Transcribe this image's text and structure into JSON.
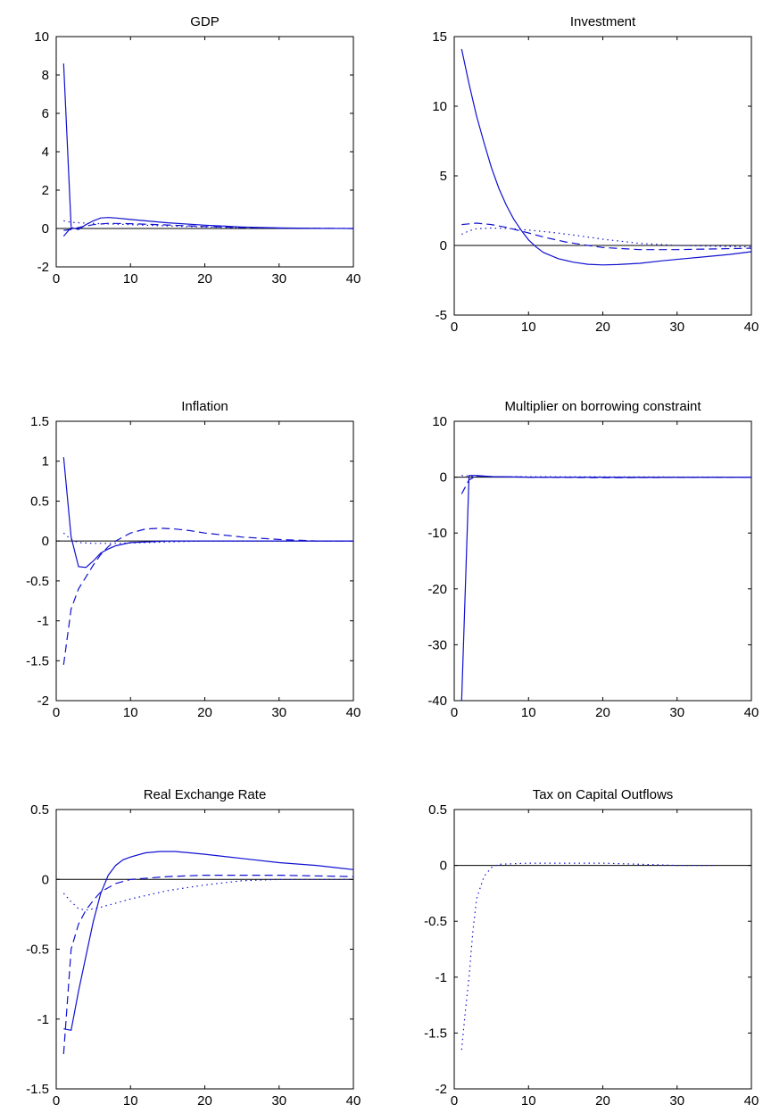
{
  "figure": {
    "colors": {
      "series": "#1010d0",
      "axis": "#000000"
    },
    "line_styles": [
      "solid",
      "dashed",
      "dotted"
    ]
  },
  "chart_data": [
    {
      "type": "line",
      "title": "GDP",
      "xlim": [
        0,
        40
      ],
      "ylim": [
        -2,
        10
      ],
      "xticks": [
        0,
        10,
        20,
        30,
        40
      ],
      "yticks": [
        -2,
        0,
        2,
        4,
        6,
        8,
        10
      ],
      "zero_line": true,
      "series": [
        {
          "style": "solid",
          "points": [
            [
              1,
              -0.4
            ],
            [
              2,
              0.05
            ],
            [
              3,
              -0.05
            ],
            [
              4,
              0.2
            ],
            [
              5,
              0.4
            ],
            [
              6,
              0.55
            ],
            [
              7,
              0.57
            ],
            [
              8,
              0.55
            ],
            [
              10,
              0.47
            ],
            [
              12,
              0.4
            ],
            [
              15,
              0.3
            ],
            [
              20,
              0.17
            ],
            [
              25,
              0.08
            ],
            [
              30,
              0.03
            ],
            [
              35,
              0.01
            ],
            [
              40,
              0.0
            ]
          ]
        },
        {
          "style": "solid",
          "points": [
            [
              1,
              8.6
            ],
            [
              2,
              0.1
            ]
          ]
        },
        {
          "style": "dashed",
          "points": [
            [
              1,
              -0.1
            ],
            [
              2,
              -0.05
            ],
            [
              3,
              0.05
            ],
            [
              5,
              0.2
            ],
            [
              7,
              0.27
            ],
            [
              10,
              0.25
            ],
            [
              15,
              0.18
            ],
            [
              20,
              0.1
            ],
            [
              25,
              0.05
            ],
            [
              30,
              0.02
            ],
            [
              40,
              0.0
            ]
          ]
        },
        {
          "style": "dotted",
          "points": [
            [
              1,
              0.4
            ],
            [
              2,
              0.32
            ],
            [
              4,
              0.28
            ],
            [
              6,
              0.25
            ],
            [
              10,
              0.2
            ],
            [
              15,
              0.13
            ],
            [
              20,
              0.08
            ],
            [
              25,
              0.04
            ],
            [
              30,
              0.02
            ],
            [
              40,
              0.0
            ]
          ]
        }
      ]
    },
    {
      "type": "line",
      "title": "Investment",
      "xlim": [
        0,
        40
      ],
      "ylim": [
        -5,
        15
      ],
      "xticks": [
        0,
        10,
        20,
        30,
        40
      ],
      "yticks": [
        -5,
        0,
        5,
        10,
        15
      ],
      "zero_line": true,
      "series": [
        {
          "style": "solid",
          "points": [
            [
              1,
              14.1
            ],
            [
              2,
              11.6
            ],
            [
              3,
              9.3
            ],
            [
              4,
              7.4
            ],
            [
              5,
              5.6
            ],
            [
              6,
              4.1
            ],
            [
              7,
              2.9
            ],
            [
              8,
              1.9
            ],
            [
              9,
              1.1
            ],
            [
              10,
              0.4
            ],
            [
              11,
              -0.1
            ],
            [
              12,
              -0.5
            ],
            [
              14,
              -0.95
            ],
            [
              16,
              -1.2
            ],
            [
              18,
              -1.35
            ],
            [
              20,
              -1.4
            ],
            [
              22,
              -1.37
            ],
            [
              25,
              -1.28
            ],
            [
              28,
              -1.1
            ],
            [
              31,
              -0.95
            ],
            [
              34,
              -0.8
            ],
            [
              37,
              -0.65
            ],
            [
              40,
              -0.45
            ]
          ]
        },
        {
          "style": "dashed",
          "points": [
            [
              1,
              1.5
            ],
            [
              2,
              1.55
            ],
            [
              3,
              1.6
            ],
            [
              5,
              1.5
            ],
            [
              7,
              1.3
            ],
            [
              10,
              0.9
            ],
            [
              12,
              0.6
            ],
            [
              15,
              0.25
            ],
            [
              18,
              0.0
            ],
            [
              20,
              -0.15
            ],
            [
              25,
              -0.3
            ],
            [
              30,
              -0.3
            ],
            [
              35,
              -0.25
            ],
            [
              40,
              -0.2
            ]
          ]
        },
        {
          "style": "dotted",
          "points": [
            [
              1,
              0.8
            ],
            [
              2,
              1.05
            ],
            [
              3,
              1.2
            ],
            [
              5,
              1.25
            ],
            [
              8,
              1.2
            ],
            [
              10,
              1.1
            ],
            [
              13,
              0.95
            ],
            [
              16,
              0.75
            ],
            [
              20,
              0.45
            ],
            [
              25,
              0.15
            ],
            [
              30,
              0.0
            ],
            [
              35,
              -0.05
            ],
            [
              40,
              -0.1
            ]
          ]
        }
      ]
    },
    {
      "type": "line",
      "title": "Inflation",
      "xlim": [
        0,
        40
      ],
      "ylim": [
        -2,
        1.5
      ],
      "xticks": [
        0,
        10,
        20,
        30,
        40
      ],
      "yticks": [
        -2,
        -1.5,
        -1,
        -0.5,
        0,
        0.5,
        1,
        1.5
      ],
      "zero_line": true,
      "series": [
        {
          "style": "solid",
          "points": [
            [
              1,
              1.05
            ],
            [
              2,
              0.05
            ],
            [
              3,
              -0.32
            ],
            [
              4,
              -0.33
            ],
            [
              5,
              -0.25
            ],
            [
              6,
              -0.15
            ],
            [
              7,
              -0.1
            ],
            [
              8,
              -0.06
            ],
            [
              10,
              -0.02
            ],
            [
              15,
              0.0
            ],
            [
              40,
              0.0
            ]
          ]
        },
        {
          "style": "dashed",
          "points": [
            [
              1,
              -1.55
            ],
            [
              2,
              -0.85
            ],
            [
              3,
              -0.6
            ],
            [
              4,
              -0.45
            ],
            [
              5,
              -0.3
            ],
            [
              6,
              -0.17
            ],
            [
              7,
              -0.07
            ],
            [
              8,
              0.0
            ],
            [
              9,
              0.05
            ],
            [
              10,
              0.1
            ],
            [
              12,
              0.15
            ],
            [
              14,
              0.16
            ],
            [
              16,
              0.15
            ],
            [
              18,
              0.13
            ],
            [
              20,
              0.1
            ],
            [
              25,
              0.05
            ],
            [
              30,
              0.02
            ],
            [
              35,
              0.0
            ],
            [
              40,
              0.0
            ]
          ]
        },
        {
          "style": "dotted",
          "points": [
            [
              1,
              0.1
            ],
            [
              2,
              0.02
            ],
            [
              3,
              -0.02
            ],
            [
              5,
              -0.03
            ],
            [
              8,
              -0.03
            ],
            [
              12,
              -0.02
            ],
            [
              20,
              0.0
            ],
            [
              40,
              0.0
            ]
          ]
        }
      ]
    },
    {
      "type": "line",
      "title": "Multiplier on borrowing constraint",
      "xlim": [
        0,
        40
      ],
      "ylim": [
        -40,
        10
      ],
      "xticks": [
        0,
        10,
        20,
        30,
        40
      ],
      "yticks": [
        -40,
        -30,
        -20,
        -10,
        0,
        10
      ],
      "zero_line": true,
      "series": [
        {
          "style": "solid",
          "points": [
            [
              1,
              -40
            ],
            [
              2,
              0.3
            ],
            [
              3,
              0.3
            ],
            [
              5,
              0.1
            ],
            [
              10,
              0.0
            ],
            [
              20,
              0.0
            ],
            [
              25,
              -0.05
            ],
            [
              40,
              0.0
            ]
          ]
        },
        {
          "style": "dashed",
          "points": [
            [
              1,
              -3.0
            ],
            [
              2,
              -0.5
            ],
            [
              3,
              0.2
            ],
            [
              5,
              0.1
            ],
            [
              10,
              0.0
            ],
            [
              20,
              -0.1
            ],
            [
              40,
              0.0
            ]
          ]
        },
        {
          "style": "dotted",
          "points": [
            [
              1,
              0.3
            ],
            [
              3,
              0.1
            ],
            [
              40,
              0.0
            ]
          ]
        }
      ]
    },
    {
      "type": "line",
      "title": "Real Exchange Rate",
      "xlim": [
        0,
        40
      ],
      "ylim": [
        -1.5,
        0.5
      ],
      "xticks": [
        0,
        10,
        20,
        30,
        40
      ],
      "yticks": [
        -1.5,
        -1,
        -0.5,
        0,
        0.5
      ],
      "zero_line": true,
      "series": [
        {
          "style": "solid",
          "points": [
            [
              1,
              -1.07
            ],
            [
              2,
              -1.08
            ],
            [
              3,
              -0.8
            ],
            [
              4,
              -0.55
            ],
            [
              5,
              -0.3
            ],
            [
              6,
              -0.1
            ],
            [
              7,
              0.03
            ],
            [
              8,
              0.1
            ],
            [
              9,
              0.14
            ],
            [
              10,
              0.16
            ],
            [
              12,
              0.19
            ],
            [
              14,
              0.2
            ],
            [
              16,
              0.2
            ],
            [
              18,
              0.19
            ],
            [
              20,
              0.18
            ],
            [
              25,
              0.15
            ],
            [
              30,
              0.12
            ],
            [
              35,
              0.1
            ],
            [
              40,
              0.07
            ]
          ]
        },
        {
          "style": "dashed",
          "points": [
            [
              1,
              -1.25
            ],
            [
              2,
              -0.5
            ],
            [
              3,
              -0.32
            ],
            [
              4,
              -0.22
            ],
            [
              5,
              -0.15
            ],
            [
              6,
              -0.09
            ],
            [
              8,
              -0.03
            ],
            [
              10,
              0.0
            ],
            [
              15,
              0.02
            ],
            [
              20,
              0.03
            ],
            [
              30,
              0.03
            ],
            [
              40,
              0.02
            ]
          ]
        },
        {
          "style": "dotted",
          "points": [
            [
              1,
              -0.1
            ],
            [
              2,
              -0.16
            ],
            [
              3,
              -0.21
            ],
            [
              4,
              -0.22
            ],
            [
              6,
              -0.2
            ],
            [
              8,
              -0.17
            ],
            [
              10,
              -0.14
            ],
            [
              15,
              -0.08
            ],
            [
              20,
              -0.04
            ],
            [
              25,
              -0.01
            ],
            [
              30,
              0.0
            ],
            [
              40,
              0.0
            ]
          ]
        }
      ]
    },
    {
      "type": "line",
      "title": "Tax on Capital Outflows",
      "xlim": [
        0,
        40
      ],
      "ylim": [
        -2,
        0.5
      ],
      "xticks": [
        0,
        10,
        20,
        30,
        40
      ],
      "yticks": [
        -2,
        -1.5,
        -1,
        -0.5,
        0,
        0.5
      ],
      "zero_line": true,
      "series": [
        {
          "style": "dotted",
          "points": [
            [
              1,
              -1.65
            ],
            [
              1.5,
              -1.3
            ],
            [
              2,
              -1.0
            ],
            [
              2.5,
              -0.6
            ],
            [
              3,
              -0.3
            ],
            [
              4,
              -0.1
            ],
            [
              5,
              -0.02
            ],
            [
              6,
              0.01
            ],
            [
              10,
              0.02
            ],
            [
              15,
              0.02
            ],
            [
              20,
              0.02
            ],
            [
              25,
              0.01
            ],
            [
              30,
              0.0
            ],
            [
              35,
              0.0
            ]
          ]
        }
      ]
    }
  ]
}
